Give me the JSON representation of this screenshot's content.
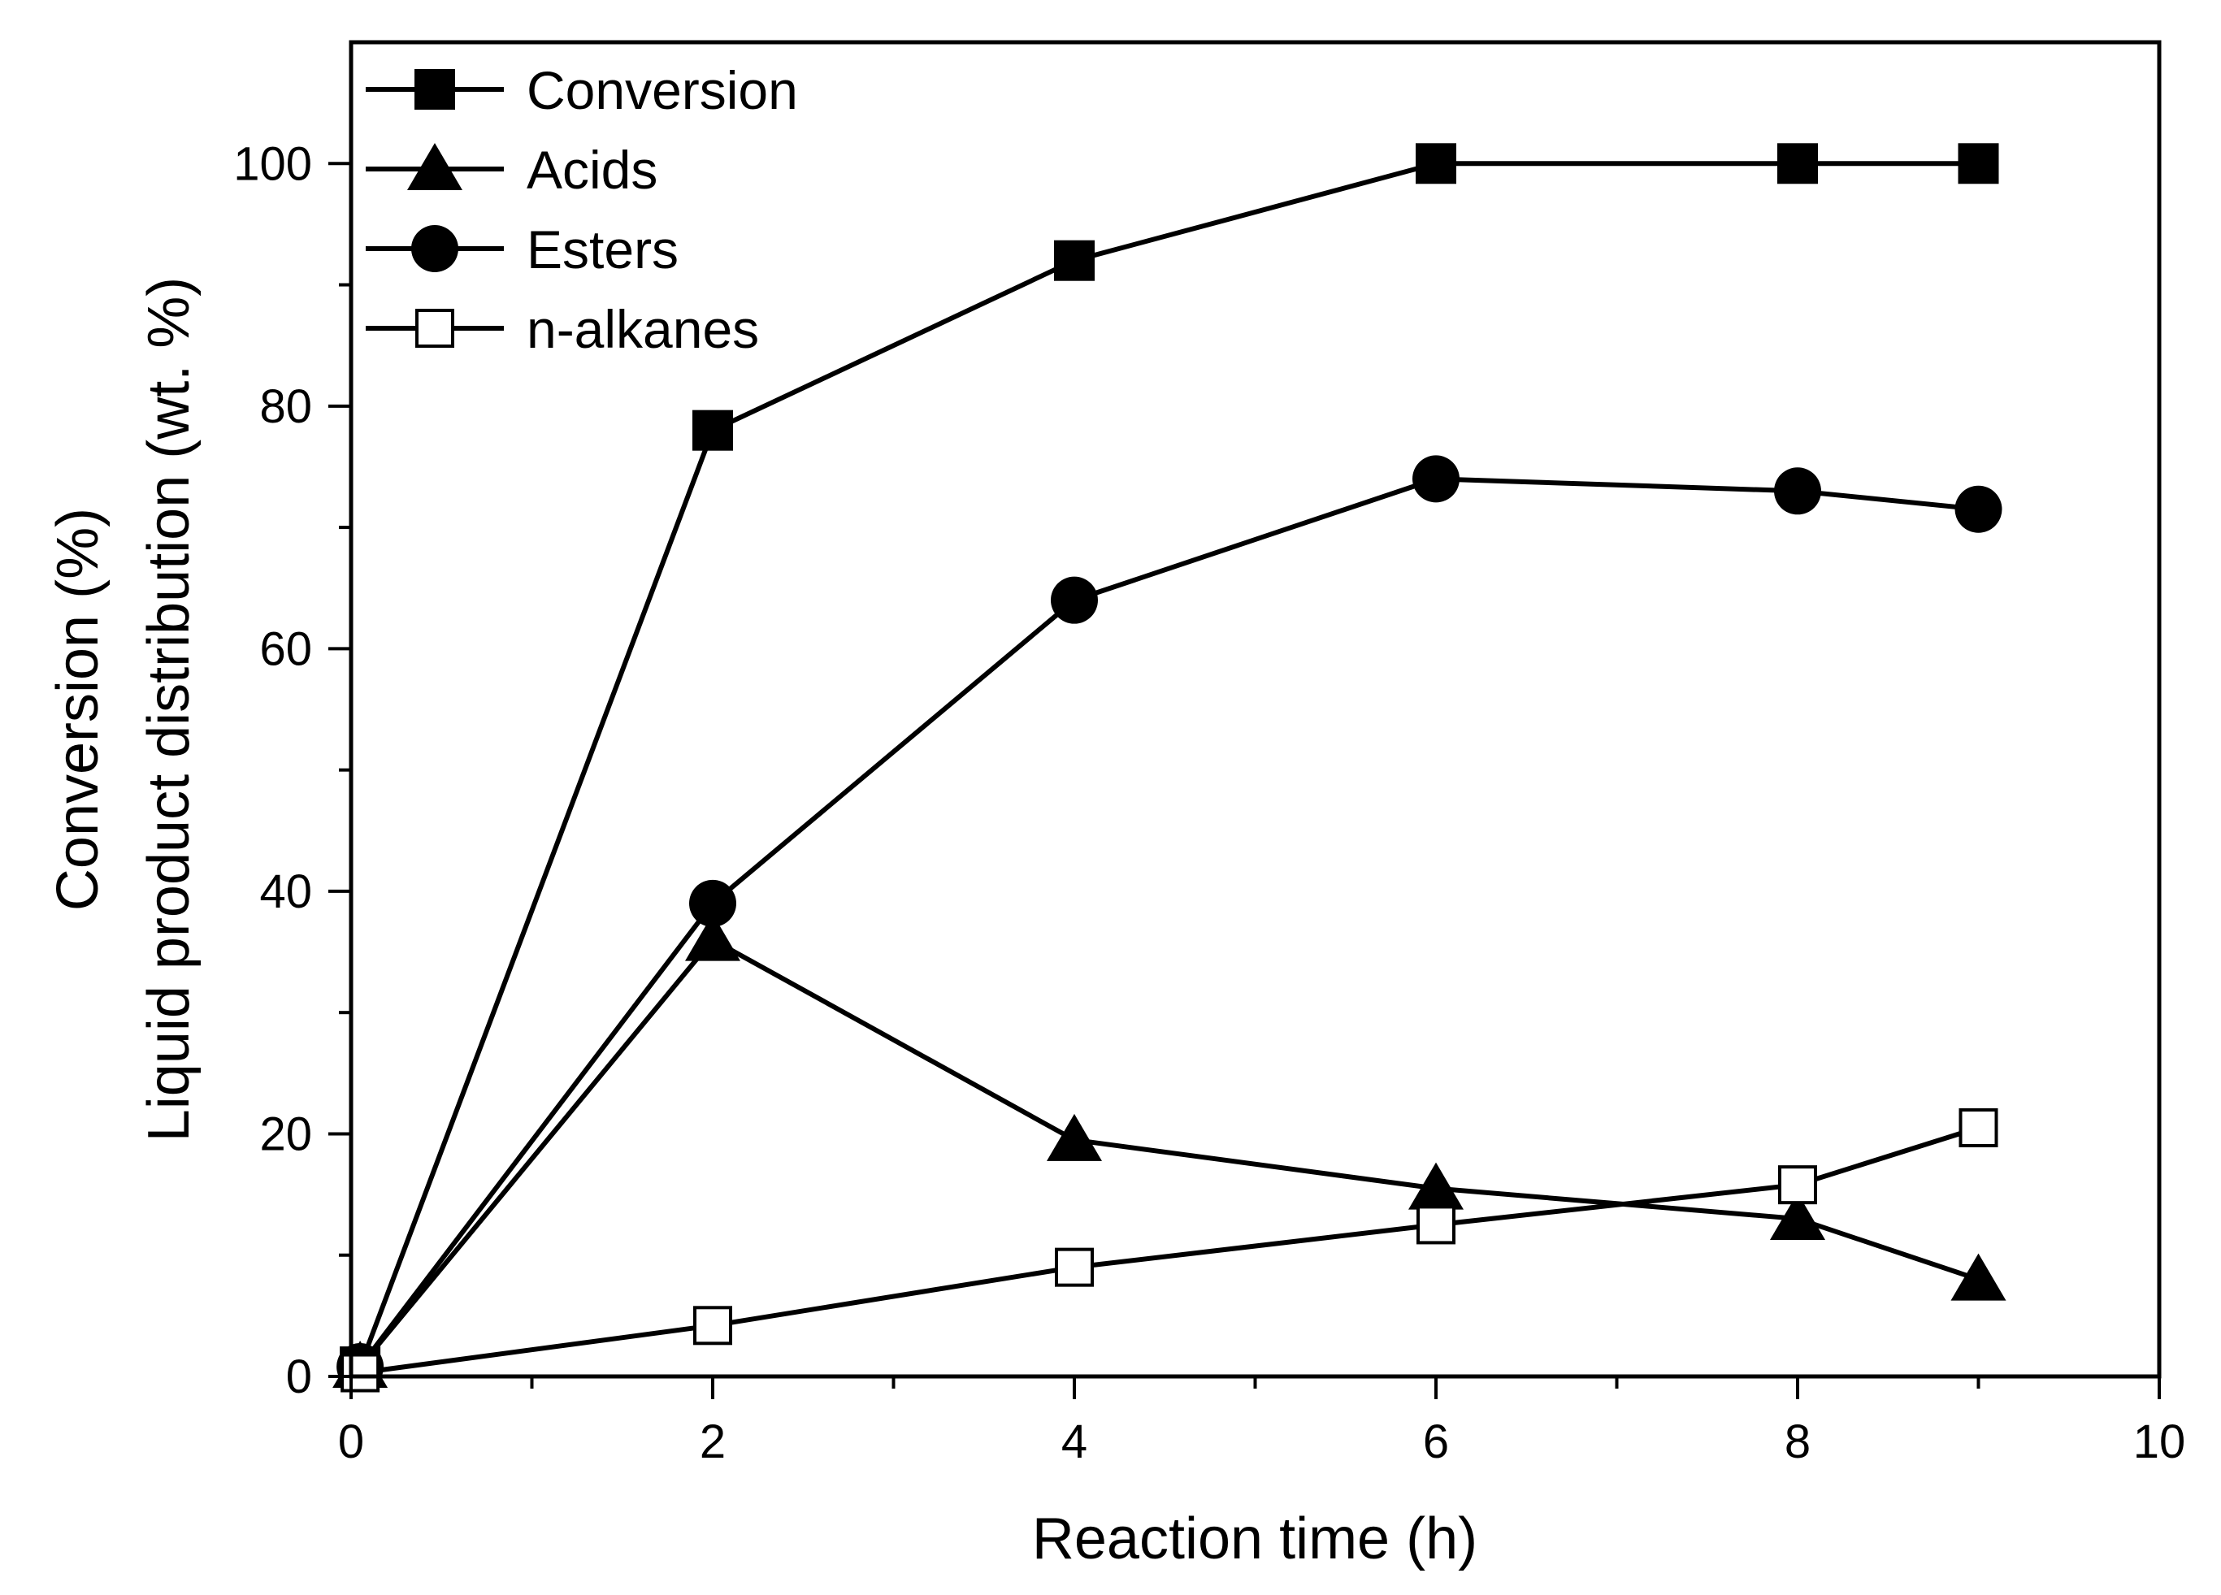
{
  "chart_data": {
    "type": "line",
    "title": "",
    "xlabel": "Reaction time (h)",
    "ylabel_line1": "Conversion (%)",
    "ylabel_line2": "Liquid product distribution (wt. %)",
    "xlim": [
      0,
      10
    ],
    "ylim": [
      0,
      110
    ],
    "xticks": [
      0,
      2,
      4,
      6,
      8,
      10
    ],
    "yticks": [
      0,
      20,
      40,
      60,
      80,
      100
    ],
    "x_minor_step": 1,
    "y_minor_step": 10,
    "grid": false,
    "legend_position": "top-left",
    "series": [
      {
        "name": "Conversion",
        "marker": "square-filled",
        "x": [
          0.05,
          2,
          4,
          6,
          8,
          9
        ],
        "y": [
          0.8,
          78,
          92,
          100,
          100,
          100
        ]
      },
      {
        "name": "Acids",
        "marker": "triangle-filled",
        "x": [
          0.05,
          2,
          4,
          6,
          8,
          9
        ],
        "y": [
          0.8,
          36,
          19.5,
          15.5,
          13,
          8
        ]
      },
      {
        "name": "Esters",
        "marker": "circle-filled",
        "x": [
          0.05,
          2,
          4,
          6,
          8,
          9
        ],
        "y": [
          0.8,
          39,
          64,
          74,
          73,
          71.5
        ]
      },
      {
        "name": "n-alkanes",
        "marker": "square-open",
        "x": [
          0.05,
          2,
          4,
          6,
          8,
          9
        ],
        "y": [
          0.3,
          4.2,
          9,
          12.5,
          15.8,
          20.5
        ]
      }
    ]
  }
}
